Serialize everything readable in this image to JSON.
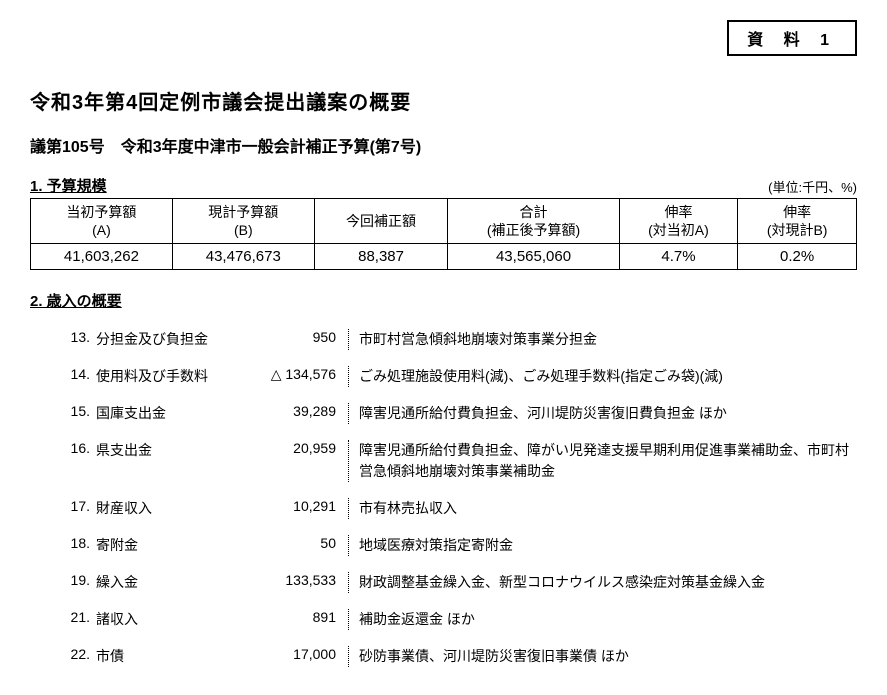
{
  "header": {
    "label": "資 料 1"
  },
  "title": "令和3年第4回定例市議会提出議案の概要",
  "subtitle": "議第105号　令和3年度中津市一般会計補正予算(第7号)",
  "section1": {
    "title": "1. 予算規模",
    "unit": "(単位:千円、%)",
    "columns": [
      "当初予算額\n(A)",
      "現計予算額\n(B)",
      "今回補正額",
      "合計\n(補正後予算額)",
      "伸率\n(対当初A)",
      "伸率\n(対現計B)"
    ],
    "row": [
      "41,603,262",
      "43,476,673",
      "88,387",
      "43,565,060",
      "4.7%",
      "0.2%"
    ]
  },
  "section2": {
    "title": "2. 歳入の概要",
    "items": [
      {
        "num": "13.",
        "name": "分担金及び負担金",
        "amount": "950",
        "desc": "市町村営急傾斜地崩壊対策事業分担金"
      },
      {
        "num": "14.",
        "name": "使用料及び手数料",
        "amount": "△ 134,576",
        "desc": "ごみ処理施設使用料(減)、ごみ処理手数料(指定ごみ袋)(減)"
      },
      {
        "num": "15.",
        "name": "国庫支出金",
        "amount": "39,289",
        "desc": "障害児通所給付費負担金、河川堤防災害復旧費負担金 ほか"
      },
      {
        "num": "16.",
        "name": "県支出金",
        "amount": "20,959",
        "desc": "障害児通所給付費負担金、障がい児発達支援早期利用促進事業補助金、市町村営急傾斜地崩壊対策事業補助金"
      },
      {
        "num": "17.",
        "name": "財産収入",
        "amount": "10,291",
        "desc": "市有林売払収入"
      },
      {
        "num": "18.",
        "name": "寄附金",
        "amount": "50",
        "desc": "地域医療対策指定寄附金"
      },
      {
        "num": "19.",
        "name": "繰入金",
        "amount": "133,533",
        "desc": "財政調整基金繰入金、新型コロナウイルス感染症対策基金繰入金"
      },
      {
        "num": "21.",
        "name": "諸収入",
        "amount": "891",
        "desc": "補助金返還金 ほか"
      },
      {
        "num": "22.",
        "name": "市債",
        "amount": "17,000",
        "desc": "砂防事業債、河川堤防災害復旧事業債 ほか"
      }
    ]
  }
}
